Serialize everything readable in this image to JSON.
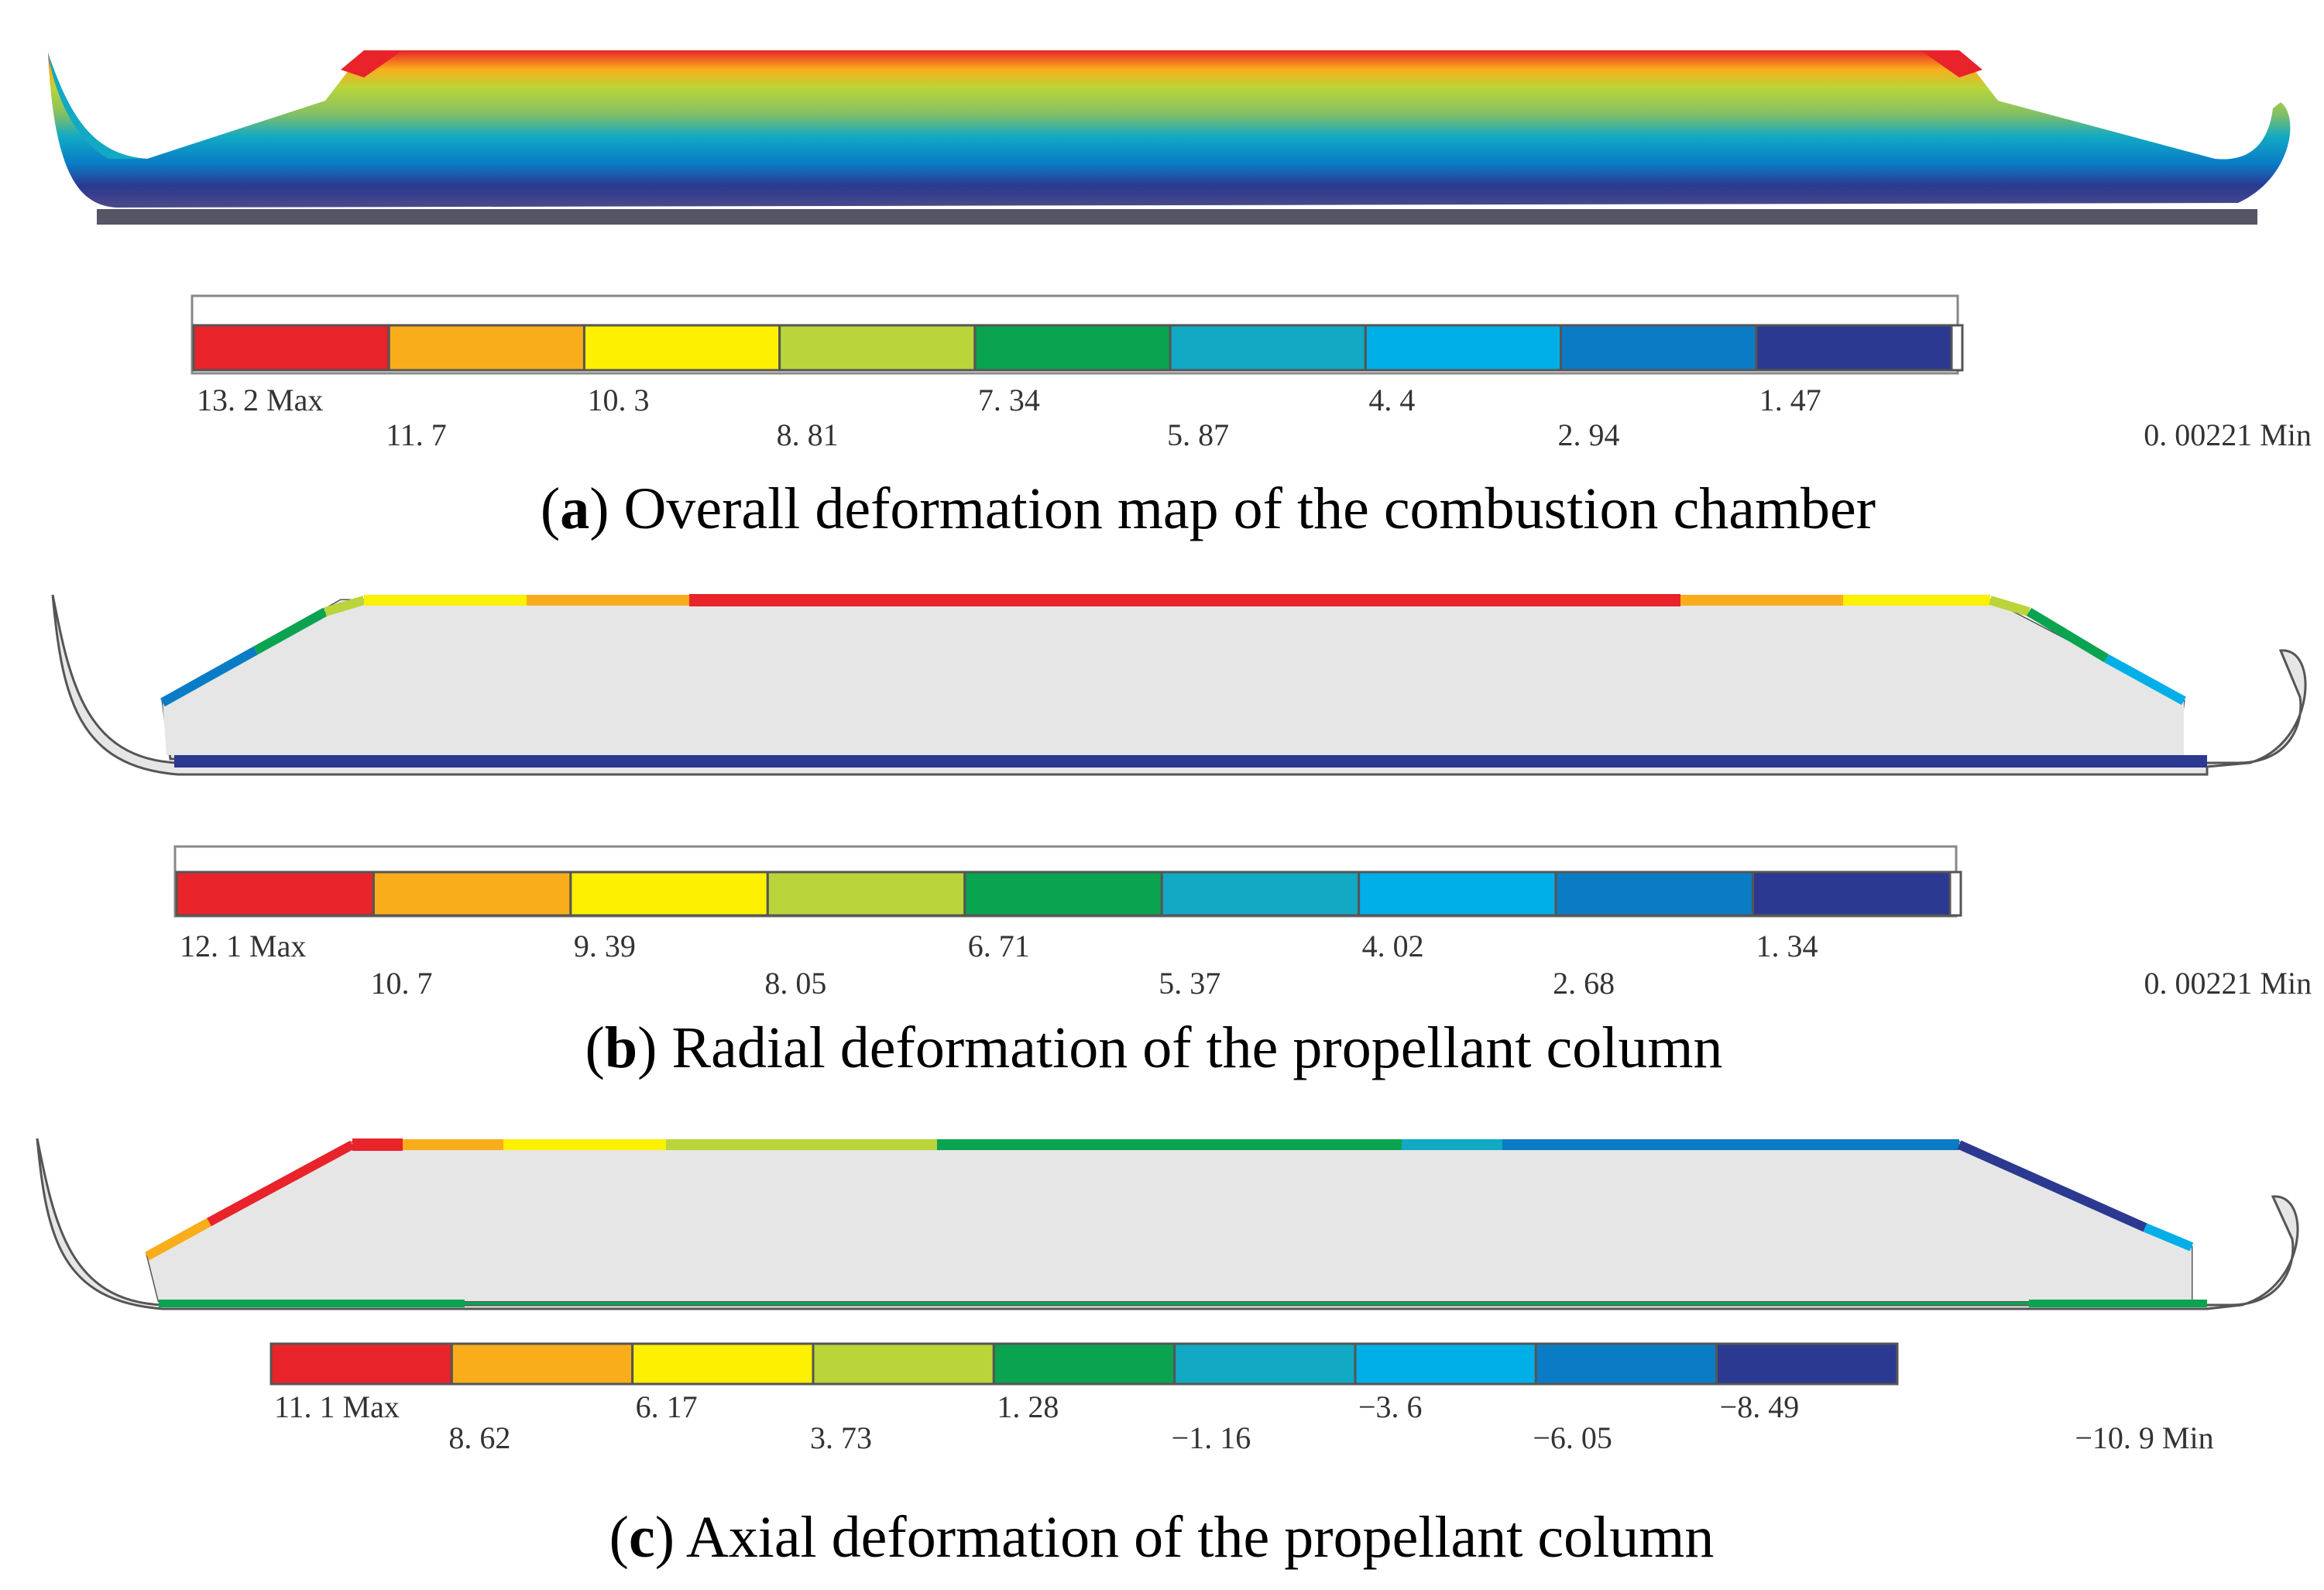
{
  "colors": {
    "scale": [
      "#e8232a",
      "#f9ad1a",
      "#fdf000",
      "#b9d53a",
      "#0aa350",
      "#11a9c4",
      "#00aee8",
      "#0a7cc6",
      "#2b3991"
    ],
    "unloaded": "#e6e6e6",
    "outline": "#555555"
  },
  "panels": [
    {
      "id": "a",
      "caption_letter": "a",
      "caption_text": "Overall deformation map of the combustion chamber",
      "legend": {
        "top_labels": [
          "13. 2 Max",
          "10. 3",
          "7. 34",
          "4. 4",
          "1. 47"
        ],
        "bottom_labels": [
          "11. 7",
          "8. 81",
          "5. 87",
          "2. 94",
          "0. 00221 Min"
        ]
      }
    },
    {
      "id": "b",
      "caption_letter": "b",
      "caption_text": "Radial deformation of the propellant column",
      "legend": {
        "top_labels": [
          "12. 1 Max",
          "9. 39",
          "6. 71",
          "4. 02",
          "1. 34"
        ],
        "bottom_labels": [
          "10. 7",
          "8. 05",
          "5. 37",
          "2. 68",
          "0. 00221 Min"
        ]
      }
    },
    {
      "id": "c",
      "caption_letter": "c",
      "caption_text": "Axial deformation of the propellant column",
      "legend": {
        "top_labels": [
          "11. 1 Max",
          "6. 17",
          "1. 28",
          "−3. 6",
          "−8. 49"
        ],
        "bottom_labels": [
          "8. 62",
          "3. 73",
          "−1. 16",
          "−6. 05",
          "−10. 9 Min"
        ]
      }
    }
  ]
}
